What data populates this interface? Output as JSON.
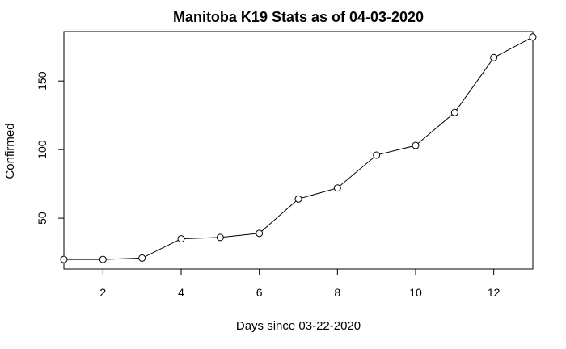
{
  "chart_data": {
    "type": "line",
    "title": "Manitoba K19 Stats as of 04-03-2020",
    "xlabel": "Days since 03-22-2020",
    "ylabel": "Confirmed",
    "x": [
      1,
      2,
      3,
      4,
      5,
      6,
      7,
      8,
      9,
      10,
      11,
      12,
      13
    ],
    "series": [
      {
        "values": [
          20,
          20,
          21,
          35,
          36,
          39,
          64,
          72,
          96,
          103,
          127,
          167,
          182
        ]
      }
    ],
    "xlim": [
      1,
      13
    ],
    "ylim": [
      13,
      186
    ],
    "xticks": [
      2,
      4,
      6,
      8,
      10,
      12
    ],
    "yticks": [
      50,
      100,
      150
    ],
    "grid": false,
    "markers": "open-circle",
    "colors": {
      "line": "#000000",
      "marker_fill": "#ffffff"
    }
  }
}
